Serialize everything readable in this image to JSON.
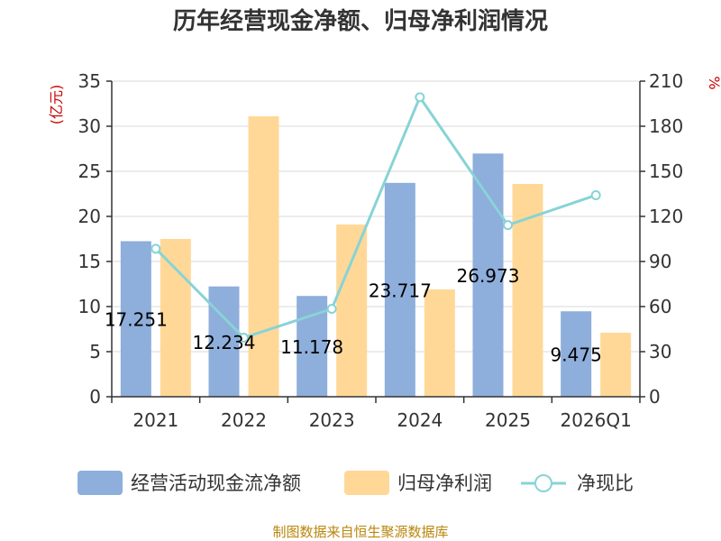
{
  "chart_data": {
    "type": "bar",
    "title": "历年经营现金净额、归母净利润情况",
    "categories": [
      "2021",
      "2022",
      "2023",
      "2024",
      "2025",
      "2026Q1"
    ],
    "left_axis": {
      "unit_label": "(亿元)",
      "ylim": [
        0,
        35
      ],
      "ticks": [
        0,
        5,
        10,
        15,
        20,
        25,
        30,
        35
      ]
    },
    "right_axis": {
      "unit_label": "%",
      "ylim": [
        0,
        210
      ],
      "ticks": [
        0,
        30,
        60,
        90,
        120,
        150,
        180,
        210
      ]
    },
    "series": [
      {
        "name": "经营活动现金流净额",
        "type": "bar",
        "axis": "left",
        "color": "#8eaedb",
        "values": [
          17.251,
          12.234,
          11.178,
          23.717,
          26.973,
          9.475
        ],
        "labels": [
          "17.251",
          "12.234",
          "11.178",
          "23.717",
          "26.973",
          "9.475"
        ]
      },
      {
        "name": "归母净利润",
        "type": "bar",
        "axis": "left",
        "color": "#ffd898",
        "values": [
          17.5,
          31.1,
          19.1,
          11.9,
          23.6,
          7.1
        ]
      },
      {
        "name": "净现比",
        "type": "line",
        "axis": "right",
        "color": "#88d3d6",
        "values": [
          98.5,
          39.3,
          58.5,
          199.3,
          114.2,
          134.1
        ]
      }
    ],
    "grid": true,
    "legend_position": "bottom"
  },
  "source_text": "制图数据来自恒生聚源数据库"
}
